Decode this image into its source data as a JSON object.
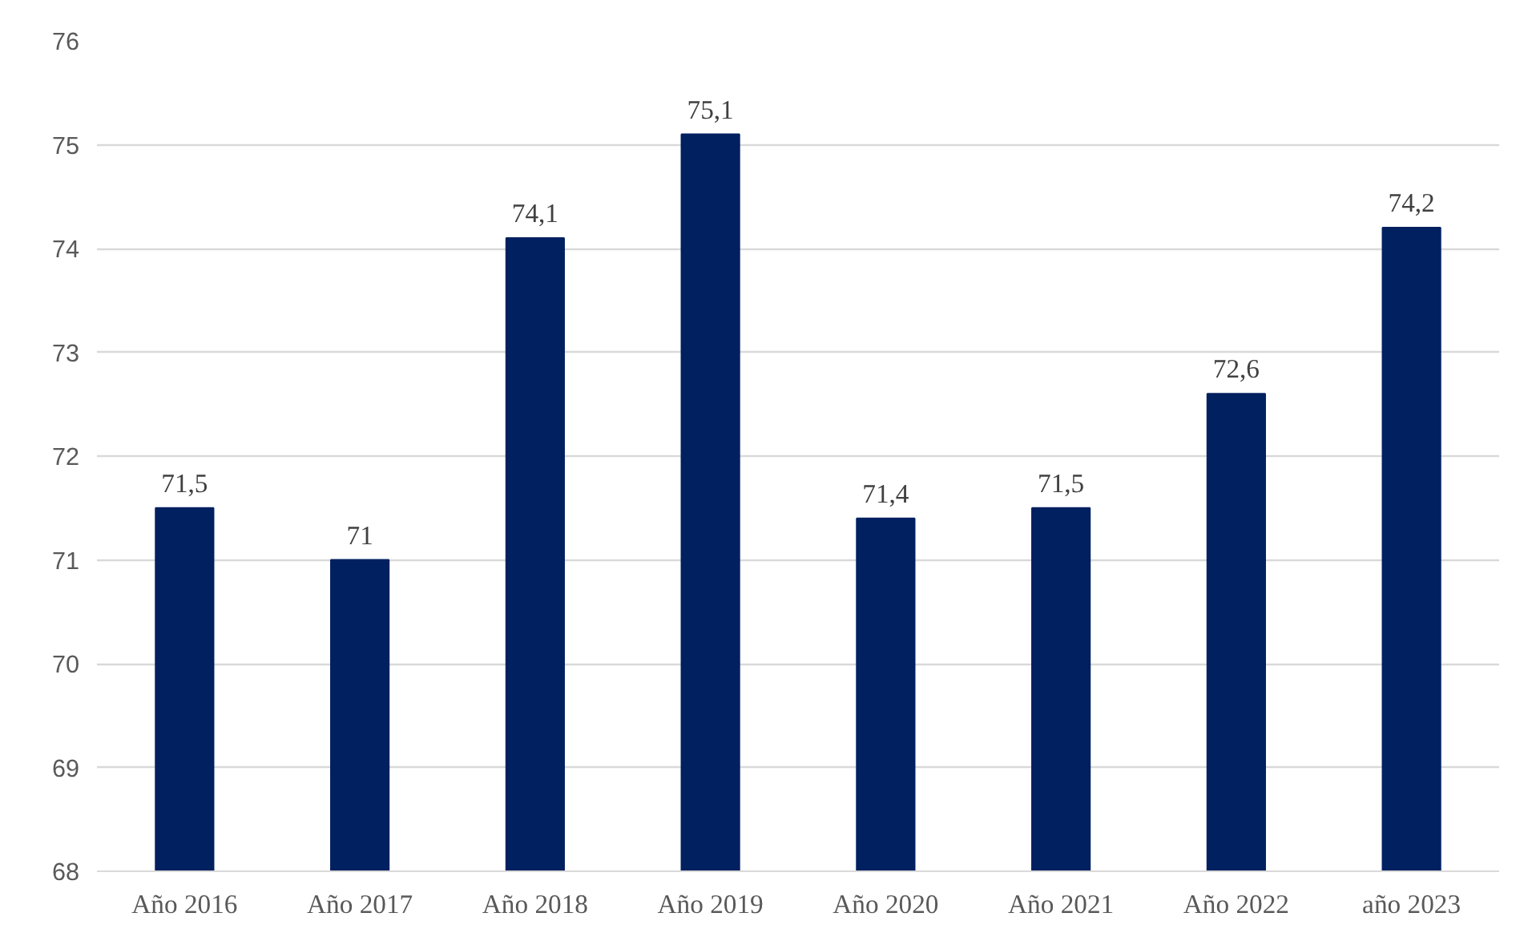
{
  "chart_data": {
    "type": "bar",
    "categories": [
      "Año 2016",
      "Año 2017",
      "Año 2018",
      "Año 2019",
      "Año 2020",
      "Año 2021",
      "Año 2022",
      "año 2023"
    ],
    "values": [
      71.5,
      71,
      74.1,
      75.1,
      71.4,
      71.5,
      72.6,
      74.2
    ],
    "value_labels": [
      "71,5",
      "71",
      "74,1",
      "75,1",
      "71,4",
      "71,5",
      "72,6",
      "74,2"
    ],
    "color": "#002060",
    "ylim": [
      68,
      76
    ],
    "yticks": [
      68,
      69,
      70,
      71,
      72,
      73,
      74,
      75,
      76
    ],
    "grid": "y"
  }
}
